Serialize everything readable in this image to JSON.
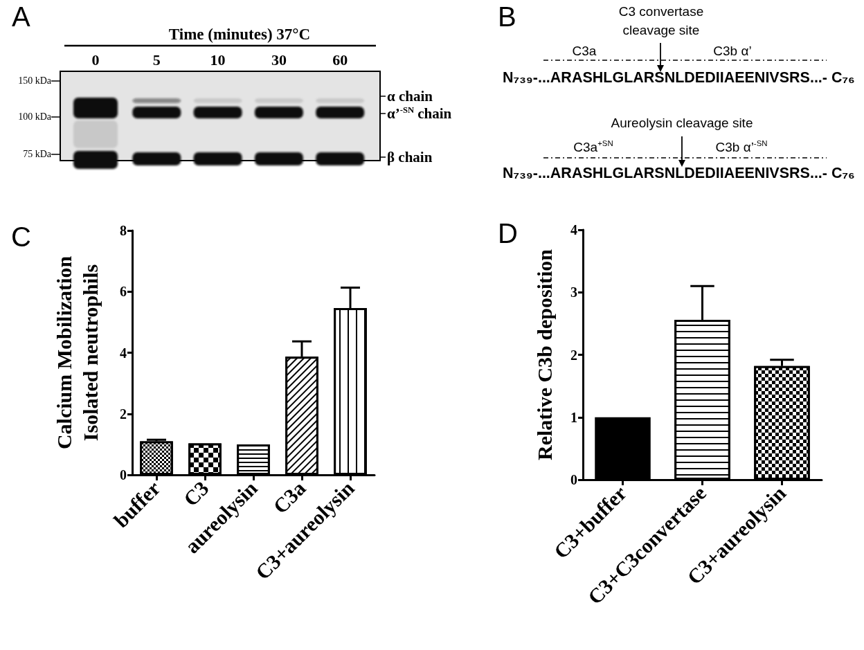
{
  "chart_data": [
    {
      "type": "other",
      "title": "A",
      "xlabel": "Time (minutes) 37°C",
      "categories": [
        "0",
        "5",
        "10",
        "30",
        "60"
      ],
      "annotations": [
        "150 kDa",
        "100 kDa",
        "75 kDa",
        "α chain",
        "α’$^{-SN}$ chain",
        "β chain"
      ]
    },
    {
      "type": "other",
      "title": "B",
      "annotations": [
        "C3 convertase\ncleavage site",
        "C3a",
        "C3b α’",
        "N₇₃₉-...ARASHLGLARSNLDEDIIAEENIVSRS...- C₇₆",
        "Aureolysin cleavage site",
        "C3a$^{+SN}$",
        "C3b α’$^{-SN}$",
        "N₇₃₉-...ARASHLGLARSNLDEDIIAEENIVSRS...- C₇₆"
      ]
    },
    {
      "type": "bar",
      "title": "C",
      "ylabel": "Calcium Mobilization\nIsolated neutrophils",
      "categories": [
        "buffer",
        "C3",
        "aureolysin",
        "C3a",
        "C3+aureolysin"
      ],
      "values": [
        1.1,
        1.03,
        1.0,
        3.87,
        5.46
      ],
      "errors": [
        0.05,
        null,
        null,
        0.5,
        0.67
      ],
      "color": "#000000",
      "ylim": [
        0,
        8
      ],
      "yticks": [
        0,
        2,
        4,
        6,
        8
      ]
    },
    {
      "type": "bar",
      "title": "D",
      "ylabel": "Relative C3b deposition",
      "categories": [
        "C3+buffer",
        "C3+C3convertase",
        "C3+aureolysin"
      ],
      "values": [
        1.0,
        2.56,
        1.82
      ],
      "errors": [
        null,
        0.54,
        0.1
      ],
      "color": "#000000",
      "ylim": [
        0,
        4
      ],
      "yticks": [
        0,
        1,
        2,
        3,
        4
      ]
    }
  ]
}
